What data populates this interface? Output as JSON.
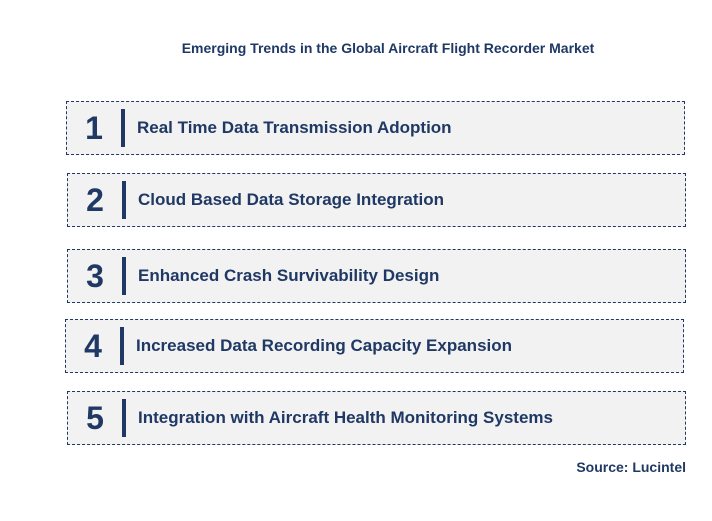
{
  "title": "Emerging Trends in the Global Aircraft Flight Recorder Market",
  "trends": [
    {
      "number": "1",
      "label": "Real Time Data Transmission Adoption"
    },
    {
      "number": "2",
      "label": "Cloud Based Data Storage Integration"
    },
    {
      "number": "3",
      "label": "Enhanced Crash Survivability Design"
    },
    {
      "number": "4",
      "label": "Increased Data Recording Capacity Expansion"
    },
    {
      "number": "5",
      "label": "Integration with Aircraft Health Monitoring Systems"
    }
  ],
  "source": "Source: Lucintel",
  "colors": {
    "text": "#1f3864",
    "box_fill": "#f2f2f2",
    "box_border": "#1f3864"
  }
}
